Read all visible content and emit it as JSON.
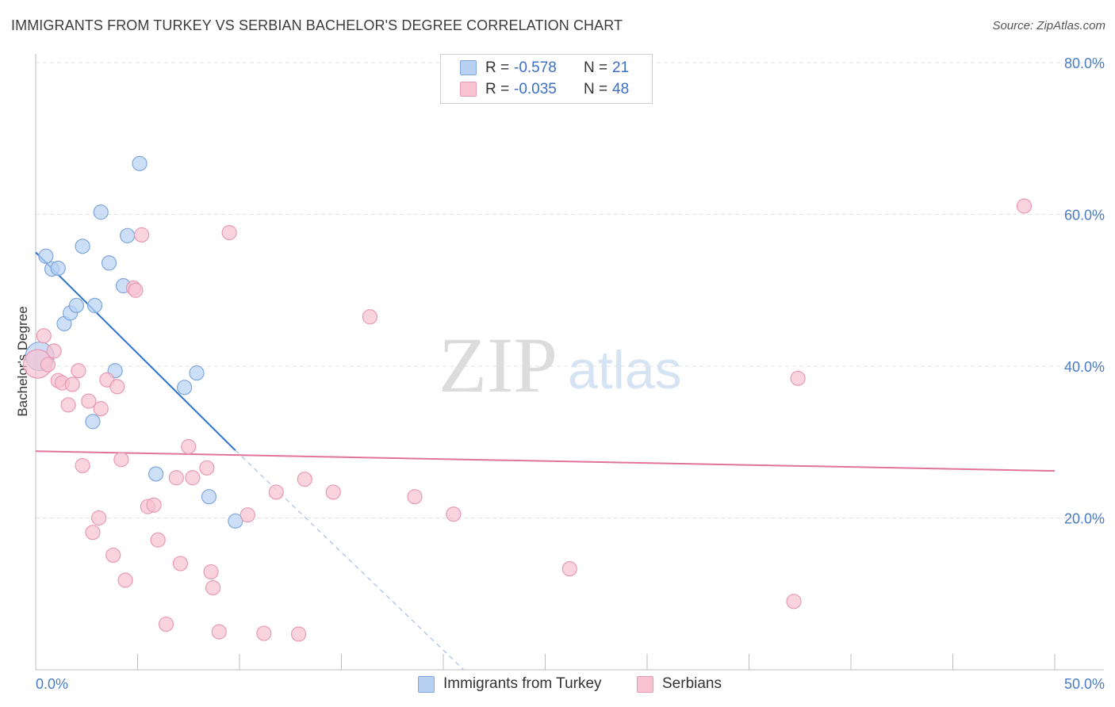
{
  "header": {
    "title": "IMMIGRANTS FROM TURKEY VS SERBIAN BACHELOR'S DEGREE CORRELATION CHART",
    "source": "Source: ZipAtlas.com"
  },
  "watermark": {
    "zip": "ZIP",
    "atlas": "atlas"
  },
  "colors": {
    "turkey_fill": "#b8d1f3",
    "turkey_stroke": "#7fa7dc",
    "turkey_line": "#2a72d2",
    "serbian_fill": "#f7c2d2",
    "serbian_stroke": "#e89ab3",
    "serbian_line": "#e0739b",
    "tick_label": "#4a7cc4"
  },
  "legend": {
    "rows": [
      {
        "r_label": "R =",
        "r_value": "-0.578",
        "n_label": "N =",
        "n_value": "21"
      },
      {
        "r_label": "R =",
        "r_value": "-0.035",
        "n_label": "N =",
        "n_value": "48"
      }
    ]
  },
  "bottom_legend": {
    "turkey": "Immigrants from Turkey",
    "serbians": "Serbians"
  },
  "chart_data": {
    "type": "scatter",
    "title": "IMMIGRANTS FROM TURKEY VS SERBIAN BACHELOR'S DEGREE CORRELATION CHART",
    "xlabel": "",
    "ylabel": "Bachelor's Degree",
    "xlim": [
      0,
      50
    ],
    "ylim": [
      0,
      80
    ],
    "x_tick_labels": [
      "0.0%",
      "50.0%"
    ],
    "y_ticks": [
      20,
      40,
      60,
      80
    ],
    "y_tick_labels": [
      "20.0%",
      "40.0%",
      "60.0%",
      "80.0%"
    ],
    "grid": true,
    "series": [
      {
        "name": "Immigrants from Turkey",
        "r": -0.578,
        "n": 21,
        "points": [
          [
            0.2,
            41.3
          ],
          [
            0.5,
            54.5
          ],
          [
            0.8,
            52.8
          ],
          [
            1.1,
            52.9
          ],
          [
            1.4,
            45.6
          ],
          [
            1.7,
            47.0
          ],
          [
            2.0,
            48.0
          ],
          [
            2.3,
            55.8
          ],
          [
            2.8,
            32.7
          ],
          [
            2.9,
            48.0
          ],
          [
            3.2,
            60.3
          ],
          [
            3.6,
            53.6
          ],
          [
            3.9,
            39.4
          ],
          [
            4.3,
            50.6
          ],
          [
            4.5,
            57.2
          ],
          [
            5.1,
            66.7
          ],
          [
            5.9,
            25.8
          ],
          [
            7.3,
            37.2
          ],
          [
            7.9,
            39.1
          ],
          [
            8.5,
            22.8
          ],
          [
            9.8,
            19.6
          ]
        ],
        "trend": {
          "x": [
            0,
            9.8
          ],
          "y": [
            55.0,
            28.9
          ]
        },
        "trend_extension": {
          "x": [
            9.8,
            21.0
          ],
          "y": [
            28.9,
            0
          ]
        }
      },
      {
        "name": "Serbians",
        "r": -0.035,
        "n": 48,
        "points": [
          [
            0.1,
            40.3
          ],
          [
            0.4,
            44.0
          ],
          [
            0.6,
            40.2
          ],
          [
            0.9,
            42.0
          ],
          [
            1.1,
            38.1
          ],
          [
            1.3,
            37.8
          ],
          [
            1.6,
            34.9
          ],
          [
            1.8,
            37.6
          ],
          [
            2.1,
            39.4
          ],
          [
            2.3,
            26.9
          ],
          [
            2.6,
            35.4
          ],
          [
            2.8,
            18.1
          ],
          [
            3.1,
            20.0
          ],
          [
            3.2,
            34.4
          ],
          [
            3.5,
            38.2
          ],
          [
            3.8,
            15.1
          ],
          [
            4.0,
            37.3
          ],
          [
            4.2,
            27.7
          ],
          [
            4.4,
            11.8
          ],
          [
            4.8,
            50.3
          ],
          [
            4.9,
            50.0
          ],
          [
            5.2,
            57.3
          ],
          [
            5.5,
            21.5
          ],
          [
            5.8,
            21.7
          ],
          [
            6.0,
            17.1
          ],
          [
            6.4,
            6.0
          ],
          [
            6.9,
            25.3
          ],
          [
            7.1,
            14.0
          ],
          [
            7.5,
            29.4
          ],
          [
            7.7,
            25.3
          ],
          [
            8.4,
            26.6
          ],
          [
            8.6,
            12.9
          ],
          [
            8.7,
            10.8
          ],
          [
            9.0,
            5.0
          ],
          [
            9.5,
            57.6
          ],
          [
            10.4,
            20.4
          ],
          [
            11.2,
            4.8
          ],
          [
            11.8,
            23.4
          ],
          [
            12.9,
            4.7
          ],
          [
            13.2,
            25.1
          ],
          [
            14.6,
            23.4
          ],
          [
            16.4,
            46.5
          ],
          [
            18.6,
            22.8
          ],
          [
            20.5,
            20.5
          ],
          [
            26.2,
            13.3
          ],
          [
            37.2,
            9.0
          ],
          [
            37.4,
            38.4
          ],
          [
            48.5,
            61.1
          ]
        ],
        "trend": {
          "x": [
            0,
            50
          ],
          "y": [
            28.8,
            26.2
          ]
        }
      }
    ]
  }
}
